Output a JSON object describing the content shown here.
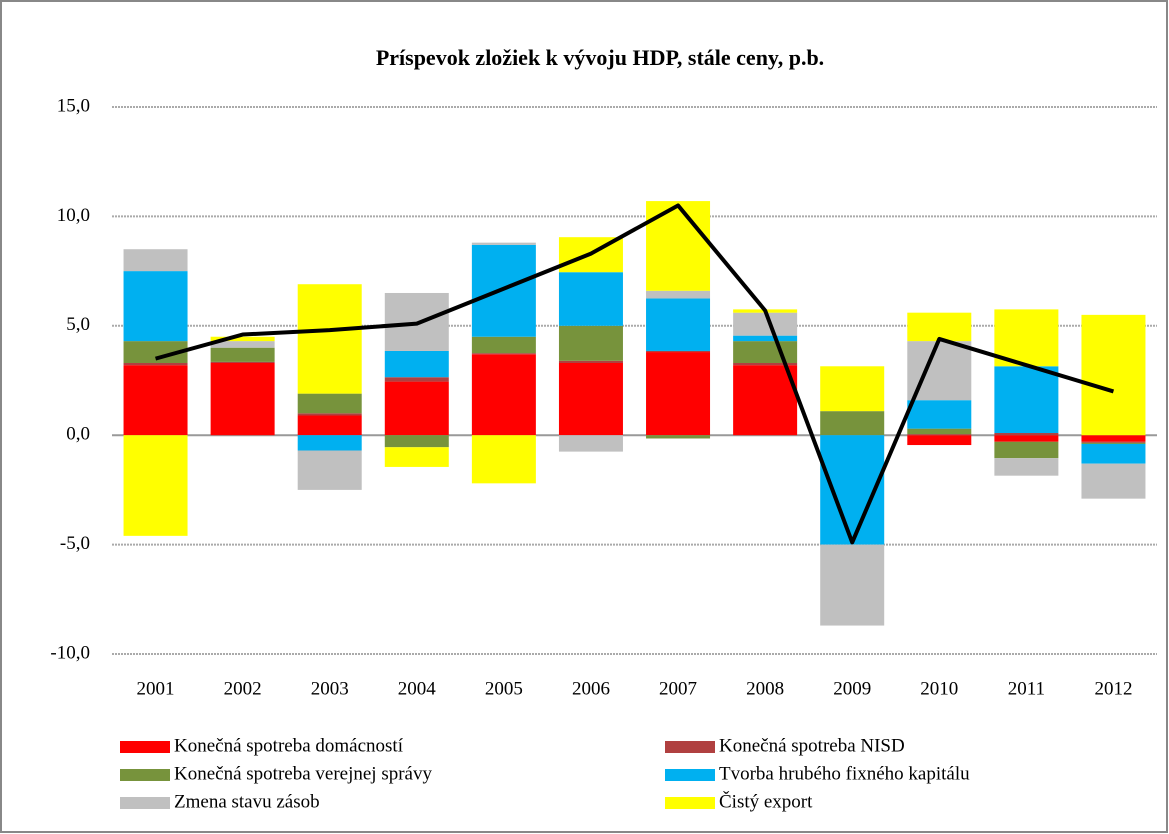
{
  "chart_data": {
    "type": "stacked_bar_line",
    "title": "Príspevok zložiek k vývoju HDP, stále ceny, p.b.",
    "categories": [
      "2001",
      "2002",
      "2003",
      "2004",
      "2005",
      "2006",
      "2007",
      "2008",
      "2009",
      "2010",
      "2011",
      "2012"
    ],
    "series": [
      {
        "name": "Konečná spotreba domácností",
        "color": "#ff0000",
        "values": [
          3.2,
          3.3,
          0.9,
          2.45,
          3.7,
          3.3,
          3.8,
          3.2,
          0,
          -0.45,
          -0.3,
          -0.3
        ]
      },
      {
        "name": "Konečná spotreba NISD",
        "color": "#b04040",
        "values": [
          0.1,
          0.05,
          0.1,
          0.2,
          0.05,
          0.1,
          0.05,
          0.1,
          0,
          0.05,
          0.1,
          -0.05
        ]
      },
      {
        "name": "Konečná spotreba verejnej správy",
        "color": "#77933c",
        "values": [
          1.0,
          0.65,
          0.9,
          -0.55,
          0.75,
          1.6,
          -0.15,
          1.0,
          1.1,
          0.25,
          -0.75,
          -0.05
        ]
      },
      {
        "name": "Tvorba hrubého fixného kapitálu",
        "color": "#00b0f0",
        "values": [
          3.2,
          0,
          -0.7,
          1.2,
          4.2,
          2.45,
          2.4,
          0.25,
          -5.0,
          1.3,
          3.05,
          -0.9
        ]
      },
      {
        "name": "Zmena stavu zásob",
        "color": "#c0c0c0",
        "values": [
          1.0,
          0.3,
          -1.8,
          2.65,
          0.1,
          -0.75,
          0.35,
          1.05,
          -3.7,
          2.7,
          -0.8,
          -1.6
        ]
      },
      {
        "name": "Čistý export",
        "color": "#ffff00",
        "values": [
          -4.6,
          0.2,
          5.0,
          -0.9,
          -2.2,
          1.6,
          4.1,
          0.15,
          2.05,
          1.3,
          2.6,
          5.5
        ]
      }
    ],
    "line": {
      "color": "#000000",
      "values": [
        3.5,
        4.6,
        4.8,
        5.1,
        6.7,
        8.3,
        10.5,
        5.7,
        -4.9,
        4.4,
        3.2,
        2.0
      ]
    },
    "ylim": [
      -10,
      15
    ],
    "yticks": [
      {
        "value": -10,
        "label": "-10,0"
      },
      {
        "value": -5,
        "label": "-5,0"
      },
      {
        "value": 0,
        "label": "0,0"
      },
      {
        "value": 5,
        "label": "5,0"
      },
      {
        "value": 10,
        "label": "10,0"
      },
      {
        "value": 15,
        "label": "15,0"
      }
    ],
    "grid": true
  }
}
